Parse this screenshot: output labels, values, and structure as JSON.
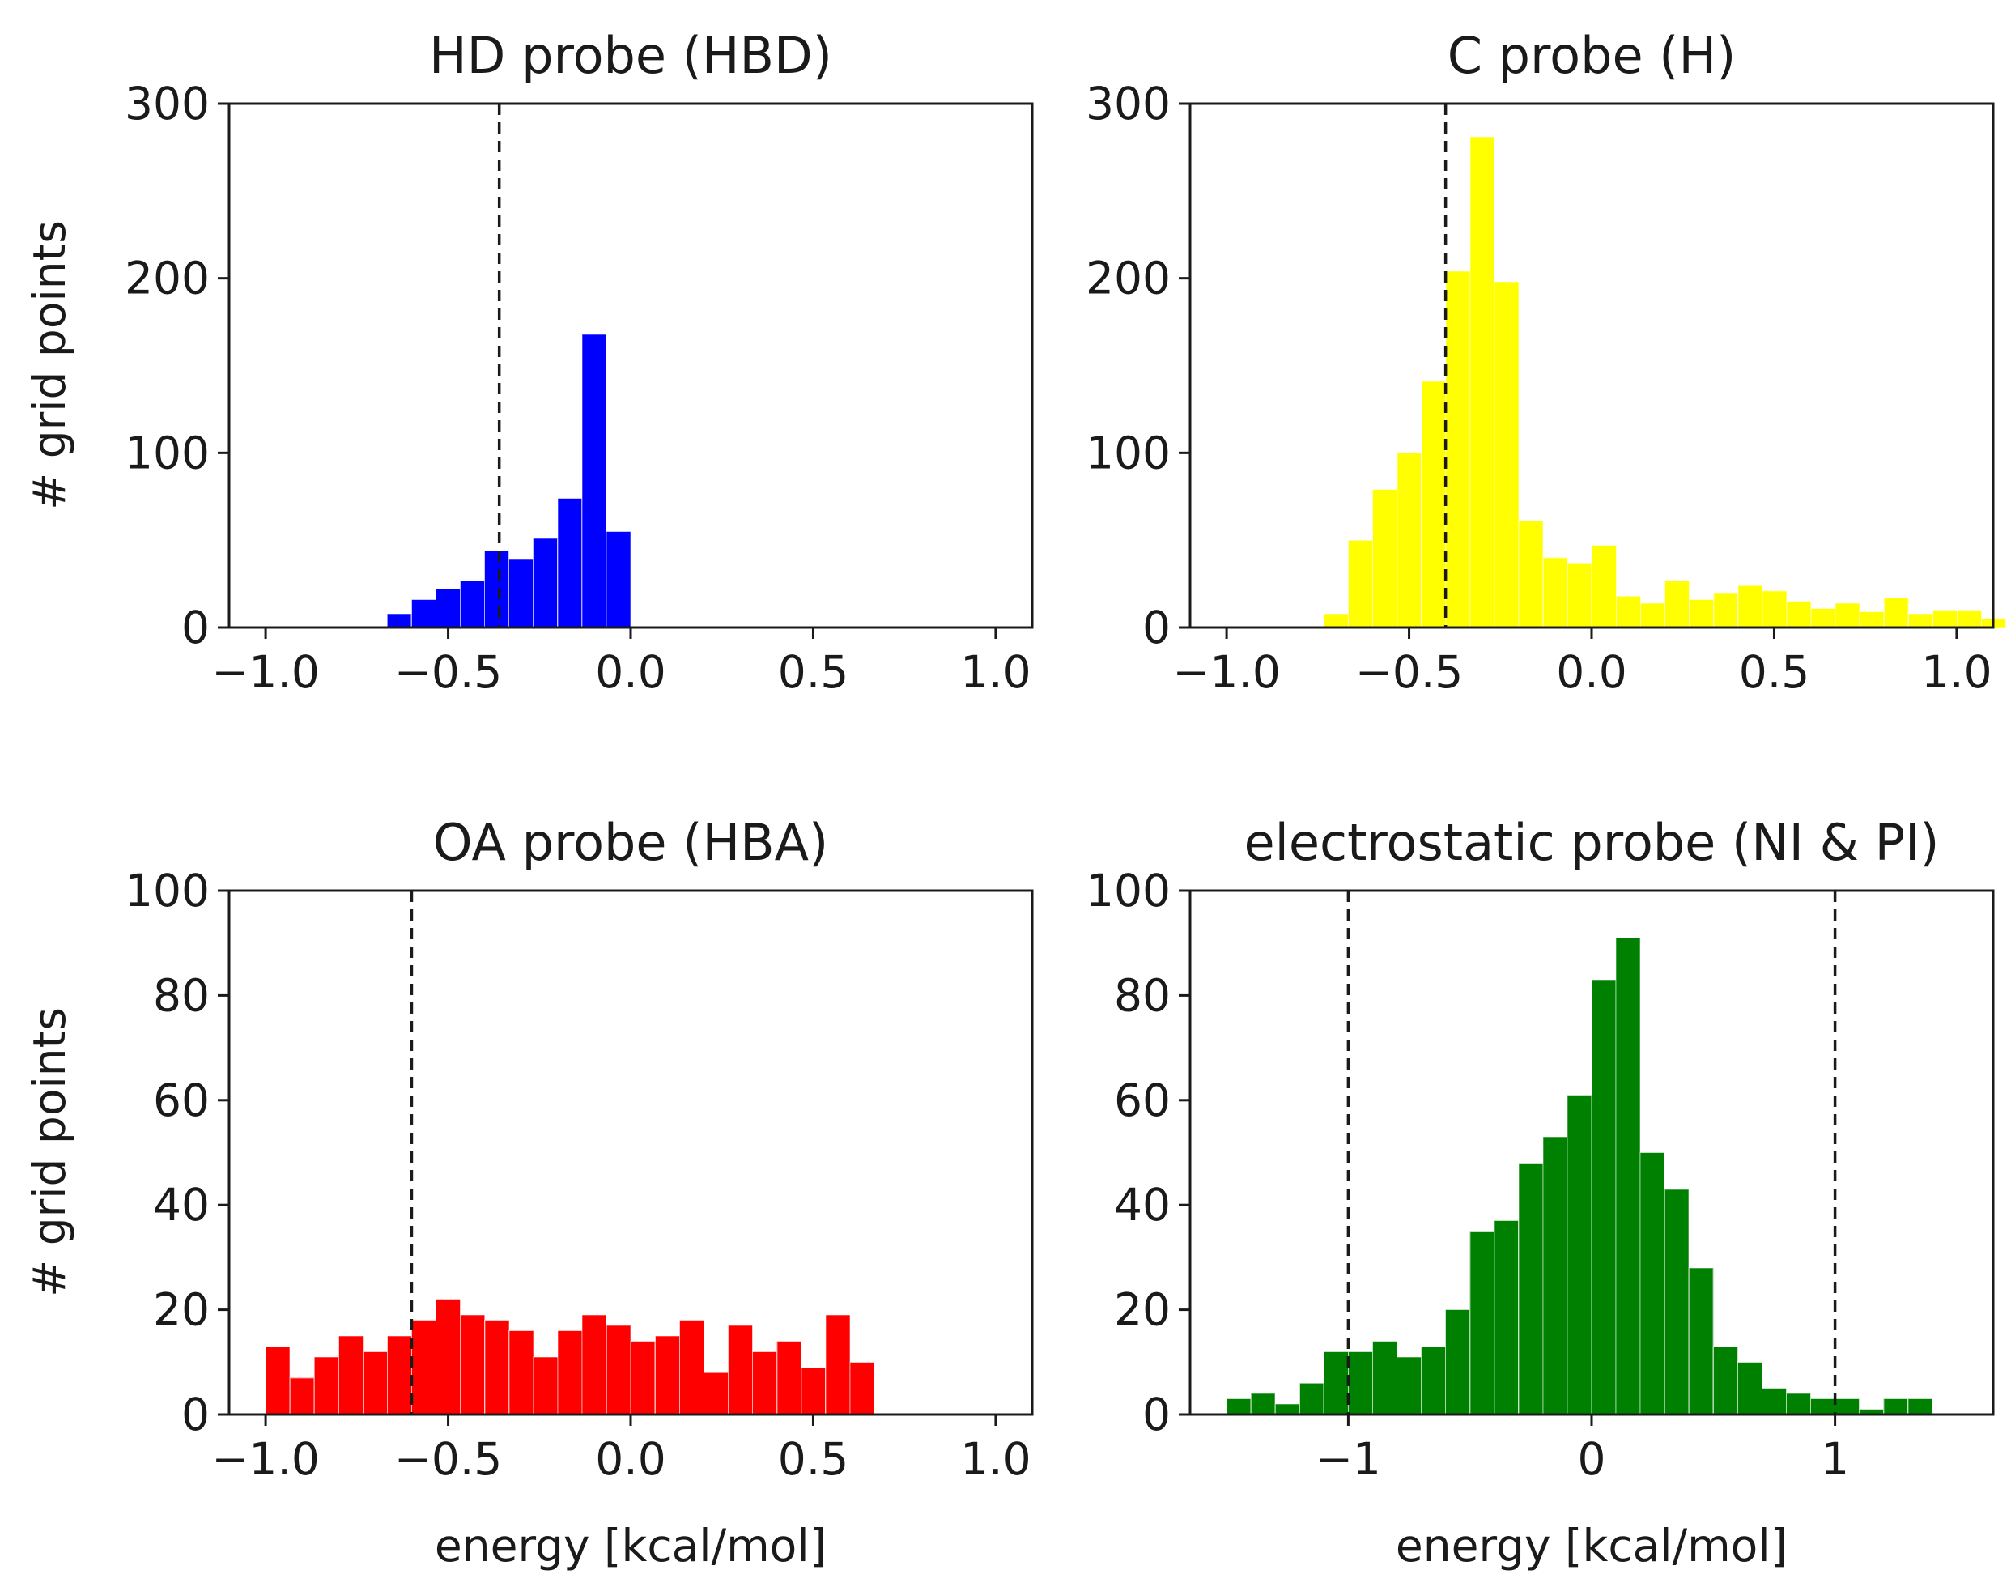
{
  "chart_data": [
    {
      "type": "histogram",
      "title": "HD probe (HBD)",
      "ylabel": "# grid points",
      "xlabel": "",
      "xlim": [
        -1.1,
        1.1
      ],
      "ylim": [
        0,
        300
      ],
      "xticks": [
        -1.0,
        -0.5,
        0.0,
        0.5,
        1.0
      ],
      "xtick_labels": [
        "−1.0",
        "−0.5",
        "0.0",
        "0.5",
        "1.0"
      ],
      "yticks": [
        0,
        100,
        200,
        300
      ],
      "ytick_labels": [
        "0",
        "100",
        "200",
        "300"
      ],
      "color": "#0000ff",
      "bin_start": -0.667,
      "bin_width": 0.0667,
      "values": [
        8,
        16,
        22,
        27,
        44,
        39,
        51,
        74,
        168,
        55
      ],
      "vlines": [
        -0.36
      ]
    },
    {
      "type": "histogram",
      "title": "C probe (H)",
      "ylabel": "",
      "xlabel": "",
      "xlim": [
        -1.1,
        1.1
      ],
      "ylim": [
        0,
        300
      ],
      "xticks": [
        -1.0,
        -0.5,
        0.0,
        0.5,
        1.0
      ],
      "xtick_labels": [
        "−1.0",
        "−0.5",
        "0.0",
        "0.5",
        "1.0"
      ],
      "yticks": [
        0,
        100,
        200,
        300
      ],
      "ytick_labels": [
        "0",
        "100",
        "200",
        "300"
      ],
      "color": "#ffff00",
      "bin_start": -0.733,
      "bin_width": 0.0667,
      "values": [
        8,
        50,
        79,
        100,
        141,
        204,
        281,
        198,
        61,
        40,
        37,
        47,
        18,
        14,
        27,
        16,
        20,
        24,
        21,
        15,
        11,
        14,
        9,
        17,
        8,
        10,
        10,
        5
      ],
      "vlines": [
        -0.4
      ]
    },
    {
      "type": "histogram",
      "title": "OA probe (HBA)",
      "ylabel": "# grid points",
      "xlabel": "energy [kcal/mol]",
      "xlim": [
        -1.1,
        1.1
      ],
      "ylim": [
        0,
        100
      ],
      "xticks": [
        -1.0,
        -0.5,
        0.0,
        0.5,
        1.0
      ],
      "xtick_labels": [
        "−1.0",
        "−0.5",
        "0.0",
        "0.5",
        "1.0"
      ],
      "yticks": [
        0,
        20,
        40,
        60,
        80,
        100
      ],
      "ytick_labels": [
        "0",
        "20",
        "40",
        "60",
        "80",
        "100"
      ],
      "color": "#ff0000",
      "bin_start": -1.0,
      "bin_width": 0.0667,
      "values": [
        13,
        7,
        11,
        15,
        12,
        15,
        18,
        22,
        19,
        18,
        16,
        11,
        16,
        19,
        17,
        14,
        15,
        18,
        8,
        17,
        12,
        14,
        9,
        19,
        10
      ],
      "vlines": [
        -0.6
      ]
    },
    {
      "type": "histogram",
      "title": "electrostatic probe (NI & PI)",
      "ylabel": "",
      "xlabel": "energy [kcal/mol]",
      "xlim": [
        -1.65,
        1.65
      ],
      "ylim": [
        0,
        100
      ],
      "xticks": [
        -1,
        0,
        1
      ],
      "xtick_labels": [
        "−1",
        "0",
        "1"
      ],
      "yticks": [
        0,
        20,
        40,
        60,
        80,
        100
      ],
      "ytick_labels": [
        "0",
        "20",
        "40",
        "60",
        "80",
        "100"
      ],
      "color": "#008000",
      "bin_start": -1.5,
      "bin_width": 0.1,
      "values": [
        3,
        4,
        2,
        6,
        12,
        12,
        14,
        11,
        13,
        20,
        35,
        37,
        48,
        53,
        61,
        83,
        91,
        50,
        43,
        28,
        13,
        10,
        5,
        4,
        3,
        3,
        1,
        3,
        3
      ],
      "vlines": [
        -1,
        1
      ]
    }
  ]
}
